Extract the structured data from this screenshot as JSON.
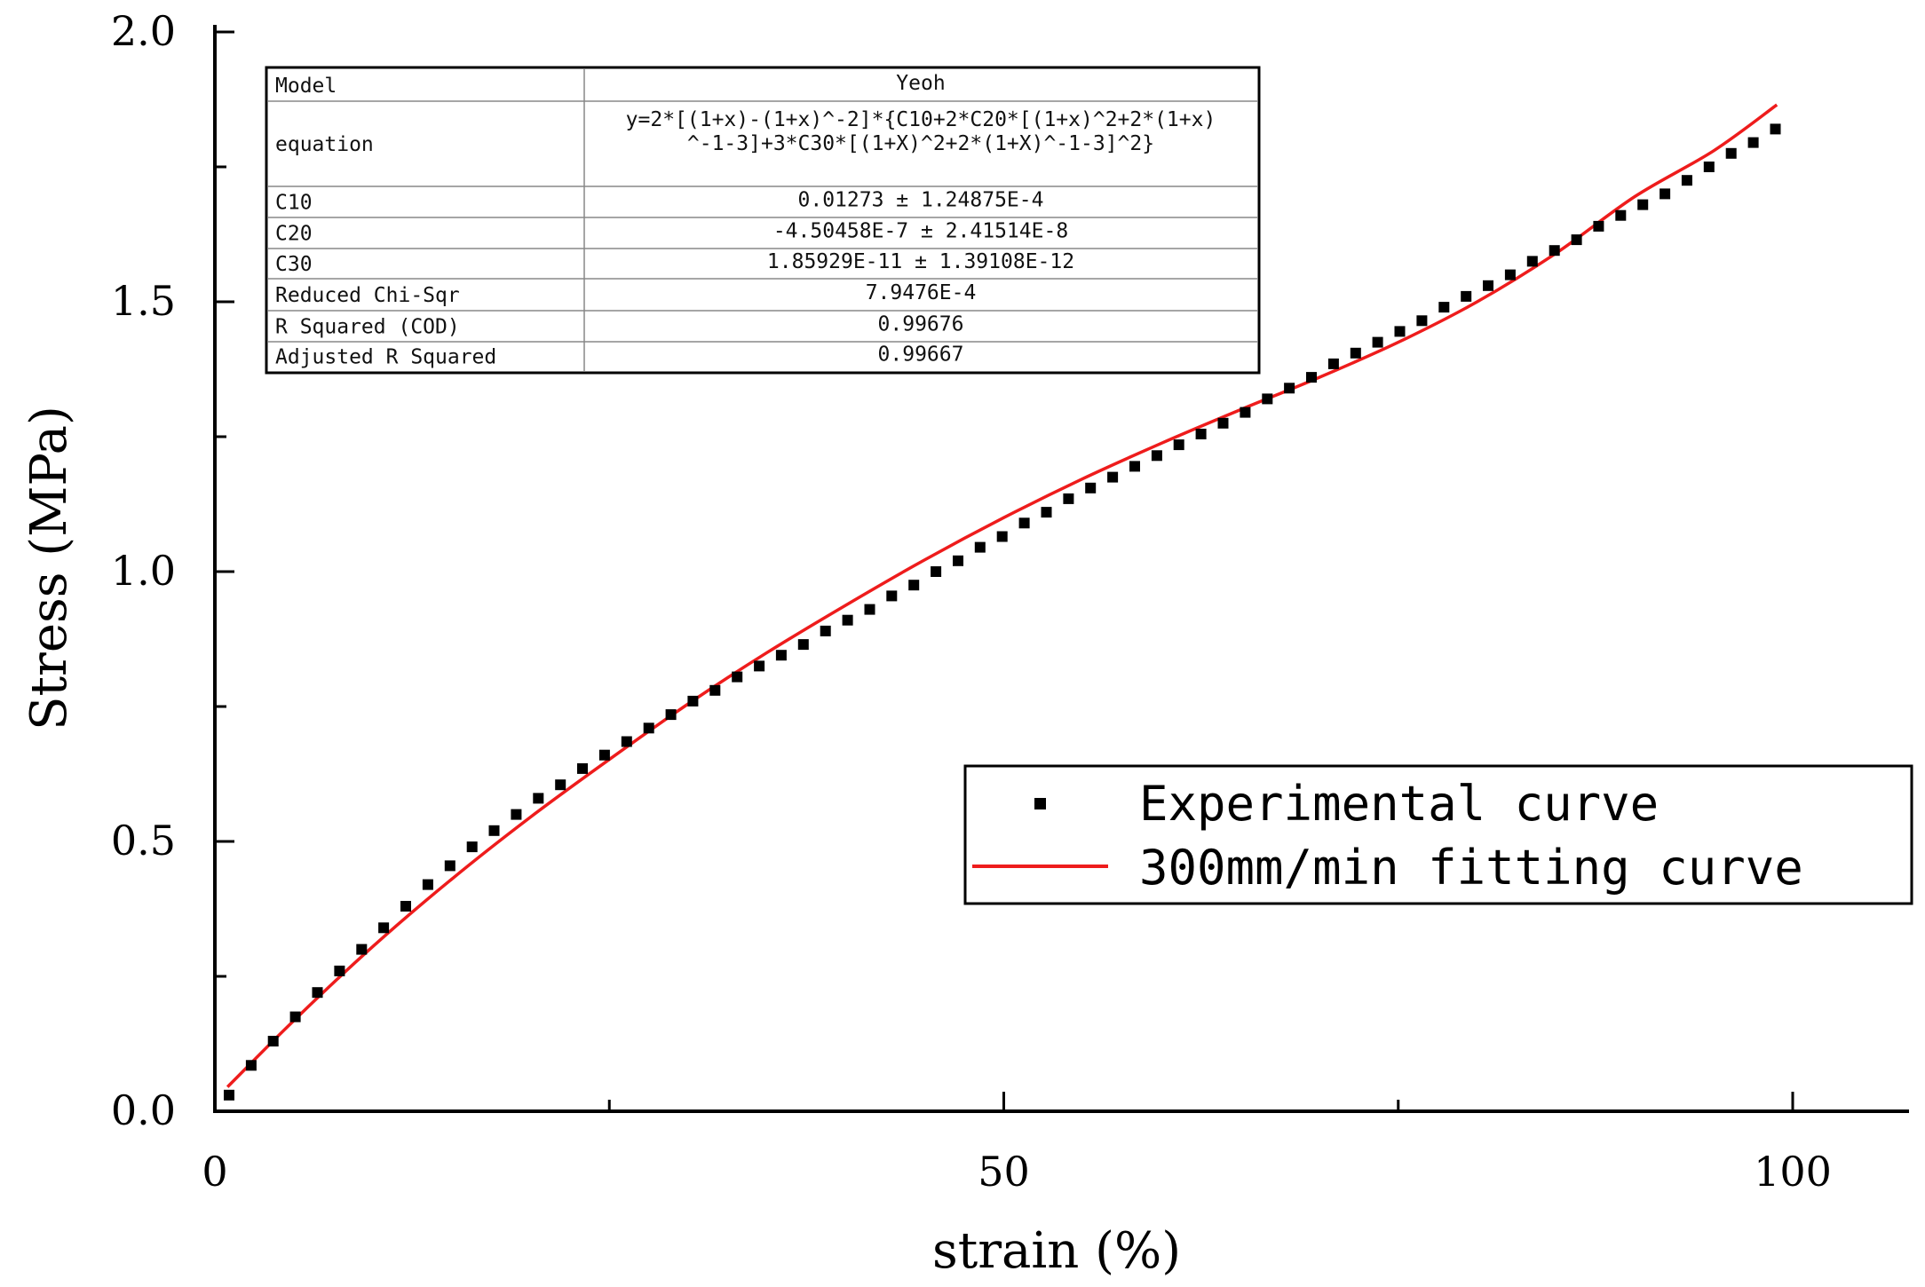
{
  "chart_data": {
    "type": "scatter",
    "xlabel": "strain (%)",
    "ylabel": "Stress (MPa)",
    "xlim": [
      0,
      107
    ],
    "ylim": [
      0,
      2.0
    ],
    "x_ticks": [
      0,
      50,
      100
    ],
    "x_tick_labels": [
      "0",
      "50",
      "100"
    ],
    "y_ticks": [
      0,
      0.5,
      1.0,
      1.5,
      2.0
    ],
    "y_tick_labels": [
      "0.0",
      "0.5",
      "1.0",
      "1.5",
      "2.0"
    ],
    "legend_position": "center-right",
    "series": [
      {
        "name": "Experimental curve",
        "type": "scatter",
        "color": "#000000",
        "x": [
          0.9,
          2.3,
          3.7,
          5.1,
          6.5,
          7.9,
          9.3,
          10.7,
          12.1,
          13.5,
          14.9,
          16.3,
          17.7,
          19.1,
          20.5,
          21.9,
          23.3,
          24.7,
          26.1,
          27.5,
          28.9,
          30.3,
          31.7,
          33.1,
          34.5,
          35.9,
          37.3,
          38.7,
          40.1,
          41.5,
          42.9,
          44.3,
          45.7,
          47.1,
          48.5,
          49.9,
          51.3,
          52.7,
          54.1,
          55.5,
          56.9,
          58.3,
          59.7,
          61.1,
          62.5,
          63.9,
          65.3,
          66.7,
          68.1,
          69.5,
          70.9,
          72.3,
          73.7,
          75.1,
          76.5,
          77.9,
          79.3,
          80.7,
          82.1,
          83.5,
          84.9,
          86.3,
          87.7,
          89.1,
          90.5,
          91.9,
          93.3,
          94.7,
          96.1,
          97.5,
          98.9
        ],
        "y": [
          0.03,
          0.085,
          0.13,
          0.175,
          0.22,
          0.26,
          0.3,
          0.34,
          0.38,
          0.42,
          0.455,
          0.49,
          0.52,
          0.55,
          0.58,
          0.605,
          0.635,
          0.66,
          0.685,
          0.71,
          0.735,
          0.76,
          0.78,
          0.805,
          0.825,
          0.845,
          0.865,
          0.89,
          0.91,
          0.93,
          0.955,
          0.975,
          1.0,
          1.02,
          1.045,
          1.065,
          1.09,
          1.11,
          1.135,
          1.155,
          1.175,
          1.195,
          1.215,
          1.235,
          1.255,
          1.275,
          1.295,
          1.32,
          1.34,
          1.36,
          1.385,
          1.405,
          1.425,
          1.445,
          1.465,
          1.49,
          1.51,
          1.53,
          1.55,
          1.575,
          1.595,
          1.615,
          1.64,
          1.66,
          1.68,
          1.7,
          1.725,
          1.75,
          1.775,
          1.795,
          1.82
        ]
      },
      {
        "name": "300mm/min fitting curve",
        "type": "line",
        "color": "#ee1c1c",
        "x": [
          0.8,
          5,
          10,
          15,
          20,
          25,
          30,
          35,
          40,
          45,
          50,
          55,
          60,
          65,
          70,
          75,
          80,
          85,
          90,
          95,
          99
        ],
        "y": [
          0.045,
          0.168,
          0.305,
          0.43,
          0.545,
          0.652,
          0.755,
          0.85,
          0.938,
          1.022,
          1.1,
          1.172,
          1.238,
          1.3,
          1.36,
          1.425,
          1.5,
          1.59,
          1.695,
          1.78,
          1.865
        ]
      }
    ],
    "fit_table": {
      "rows": [
        {
          "label": "Model",
          "value": "Yeoh"
        },
        {
          "label": "equation",
          "value": "y=2*[(1+x)-(1+x)^-2]*{C10+2*C20*[(1+x)^2+2*(1+x)",
          "value2": "^-1-3]+3*C30*[(1+X)^2+2*(1+X)^-1-3]^2}"
        },
        {
          "label": "C10",
          "value": "0.01273 ± 1.24875E-4"
        },
        {
          "label": "C20",
          "value": "-4.50458E-7 ± 2.41514E-8"
        },
        {
          "label": "C30",
          "value": "1.85929E-11 ± 1.39108E-12"
        },
        {
          "label": "Reduced Chi-Sqr",
          "value": "7.9476E-4"
        },
        {
          "label": "R Squared (COD)",
          "value": "0.99676"
        },
        {
          "label": "Adjusted R Squared",
          "value": "0.99667"
        }
      ]
    }
  }
}
